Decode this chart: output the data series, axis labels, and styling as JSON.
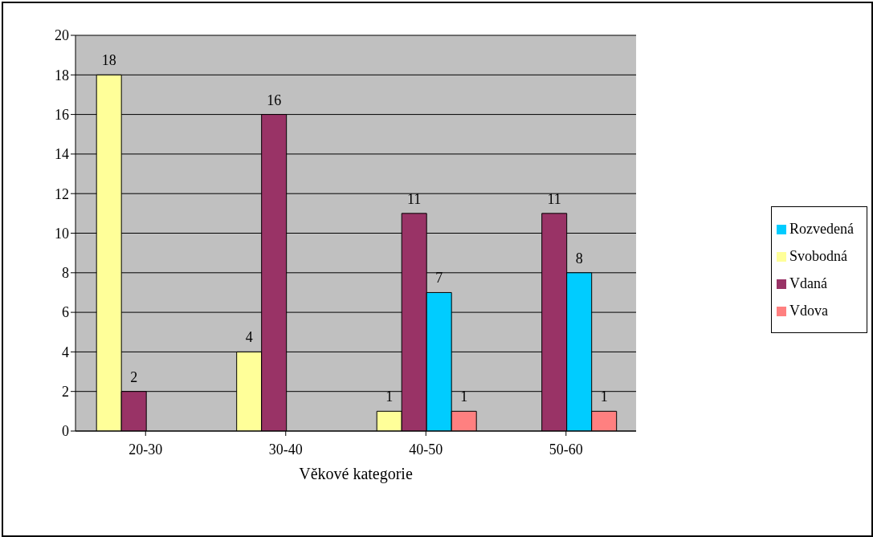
{
  "chart_data": {
    "type": "bar",
    "xlabel": "Věkové kategorie",
    "categories": [
      "20-30",
      "30-40",
      "40-50",
      "50-60"
    ],
    "series": [
      {
        "name": "Svobodná",
        "color": "#ffff99",
        "values": [
          18,
          4,
          1,
          null
        ]
      },
      {
        "name": "Vdaná",
        "color": "#993366",
        "values": [
          2,
          16,
          11,
          11
        ]
      },
      {
        "name": "Rozvedená",
        "color": "#00ccff",
        "values": [
          null,
          null,
          7,
          8
        ]
      },
      {
        "name": "Vdova",
        "color": "#ff8080",
        "values": [
          null,
          null,
          1,
          1
        ]
      }
    ],
    "ylim": [
      0,
      20
    ],
    "yticks": [
      0,
      2,
      4,
      6,
      8,
      10,
      12,
      14,
      16,
      18,
      20
    ],
    "grid": "y",
    "legend": "right",
    "data_labels": true
  }
}
